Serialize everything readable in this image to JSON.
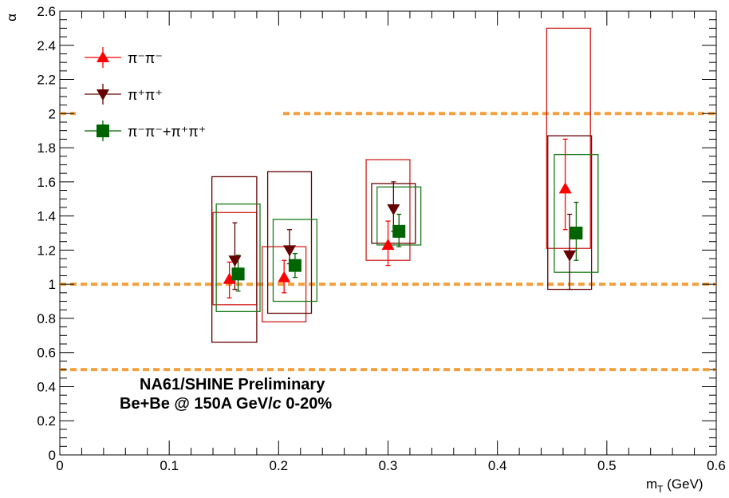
{
  "chart_data": {
    "type": "scatter",
    "title": "",
    "xlabel": "m_T (GeV)",
    "ylabel": "α",
    "xlim": [
      0,
      0.6
    ],
    "ylim": [
      0,
      2.6
    ],
    "x_ticks": [
      "0",
      "0.1",
      "0.2",
      "0.3",
      "0.4",
      "0.5",
      "0.6"
    ],
    "y_ticks": [
      "0",
      "0.2",
      "0.4",
      "0.6",
      "0.8",
      "1",
      "1.2",
      "1.4",
      "1.6",
      "1.8",
      "2",
      "2.2",
      "2.4",
      "2.6"
    ],
    "grid": false,
    "legend_position": "top-left",
    "annotations": [
      "NA61/SHINE Preliminary",
      "Be+Be @ 150A GeV/c 0-20%"
    ],
    "reference_lines": [
      {
        "y": 0.5,
        "color": "#f4a040"
      },
      {
        "y": 1.0,
        "color": "#f4a040"
      },
      {
        "y": 2.0,
        "color": "#f4a040"
      }
    ],
    "series": [
      {
        "name": "π⁻π⁻",
        "marker": "triangle-up",
        "color": "#ff0000",
        "box_color": "#d02020",
        "points": [
          {
            "x": 0.155,
            "y": 1.03,
            "err_lo": 0.11,
            "err_hi": 0.1,
            "sys_lo": 0.88,
            "sys_hi": 1.42,
            "box_x": [
              0.14,
              0.18
            ]
          },
          {
            "x": 0.205,
            "y": 1.04,
            "err_lo": 0.09,
            "err_hi": 0.1,
            "sys_lo": 0.78,
            "sys_hi": 1.22,
            "box_x": [
              0.185,
              0.225
            ]
          },
          {
            "x": 0.3,
            "y": 1.23,
            "err_lo": 0.12,
            "err_hi": 0.14,
            "sys_lo": 1.14,
            "sys_hi": 1.73,
            "box_x": [
              0.28,
              0.32
            ]
          },
          {
            "x": 0.462,
            "y": 1.56,
            "err_lo": 0.24,
            "err_hi": 0.29,
            "sys_lo": 1.21,
            "sys_hi": 2.5,
            "box_x": [
              0.445,
              0.485
            ]
          }
        ]
      },
      {
        "name": "π⁺π⁺",
        "marker": "triangle-down",
        "color": "#660000",
        "box_color": "#660000",
        "points": [
          {
            "x": 0.16,
            "y": 1.14,
            "err_lo": 0.17,
            "err_hi": 0.22,
            "sys_lo": 0.66,
            "sys_hi": 1.63,
            "box_x": [
              0.139,
              0.18
            ]
          },
          {
            "x": 0.21,
            "y": 1.2,
            "err_lo": 0.08,
            "err_hi": 0.12,
            "sys_lo": 0.83,
            "sys_hi": 1.66,
            "box_x": [
              0.19,
              0.23
            ]
          },
          {
            "x": 0.305,
            "y": 1.44,
            "err_lo": 0.13,
            "err_hi": 0.16,
            "sys_lo": 1.24,
            "sys_hi": 1.59,
            "box_x": [
              0.285,
              0.325
            ]
          },
          {
            "x": 0.466,
            "y": 1.17,
            "err_lo": 0.2,
            "err_hi": 0.24,
            "sys_lo": 0.97,
            "sys_hi": 1.87,
            "box_x": [
              0.446,
              0.486
            ]
          }
        ]
      },
      {
        "name": "π⁻π⁻+π⁺π⁺",
        "marker": "square",
        "color": "#006400",
        "box_color": "#1a7a1a",
        "points": [
          {
            "x": 0.163,
            "y": 1.06,
            "err_lo": 0.1,
            "err_hi": 0.11,
            "sys_lo": 0.84,
            "sys_hi": 1.47,
            "box_x": [
              0.143,
              0.183
            ]
          },
          {
            "x": 0.215,
            "y": 1.11,
            "err_lo": 0.07,
            "err_hi": 0.07,
            "sys_lo": 0.9,
            "sys_hi": 1.38,
            "box_x": [
              0.195,
              0.235
            ]
          },
          {
            "x": 0.31,
            "y": 1.31,
            "err_lo": 0.09,
            "err_hi": 0.1,
            "sys_lo": 1.23,
            "sys_hi": 1.57,
            "box_x": [
              0.29,
              0.33
            ]
          },
          {
            "x": 0.472,
            "y": 1.3,
            "err_lo": 0.16,
            "err_hi": 0.18,
            "sys_lo": 1.07,
            "sys_hi": 1.76,
            "box_x": [
              0.452,
              0.492
            ]
          }
        ]
      }
    ]
  }
}
